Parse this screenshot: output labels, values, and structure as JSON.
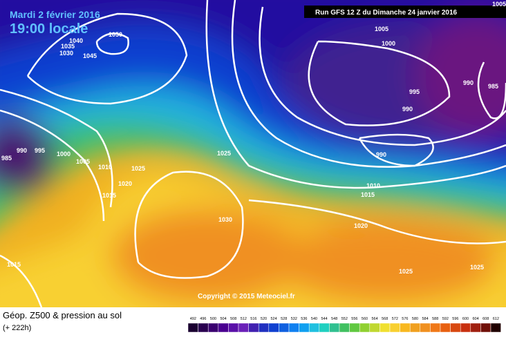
{
  "header": {
    "date": "Mardi 2 février 2016",
    "time": "19:00 locale",
    "run": "Run GFS 12 Z du Dimanche 24 janvier 2016"
  },
  "map": {
    "copyright": "Copyright © 2015 Meteociel.fr",
    "isobar_labels": [
      "1005",
      "1050",
      "1045",
      "1040",
      "1035",
      "1030",
      "1005",
      "1000",
      "995",
      "990",
      "990",
      "985",
      "990",
      "985",
      "990",
      "995",
      "1000",
      "1005",
      "1010",
      "1025",
      "1020",
      "1015",
      "1025",
      "1030",
      "1010",
      "1015",
      "1020",
      "1025",
      "1025",
      "1015"
    ]
  },
  "legend": {
    "title": "Géop. Z500 & pression au sol",
    "lead": "(+ 222h)",
    "scale": [
      "492",
      "496",
      "500",
      "504",
      "508",
      "512",
      "516",
      "520",
      "524",
      "528",
      "532",
      "536",
      "540",
      "544",
      "548",
      "552",
      "556",
      "560",
      "564",
      "568",
      "572",
      "576",
      "580",
      "584",
      "588",
      "592",
      "596",
      "600",
      "604",
      "608",
      "612"
    ]
  }
}
